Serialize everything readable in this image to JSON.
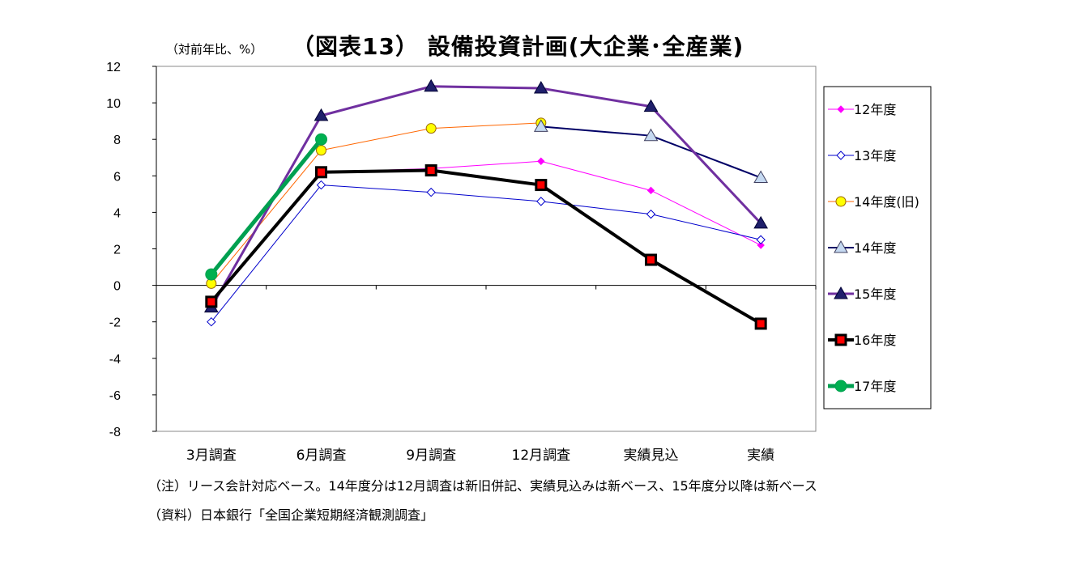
{
  "title": "（図表13） 設備投資計画(大企業･全産業)",
  "unit_label": "（対前年比、%）",
  "notes": [
    "（注）リース会計対応ベース。14年度分は12月調査は新旧併記、実績見込みは新ベース、15年度分以降は新ベース",
    "（資料）日本銀行「全国企業短期経済観測調査」"
  ],
  "chart_data": {
    "type": "line",
    "title": "（図表13） 設備投資計画(大企業･全産業)",
    "xlabel": "",
    "ylabel": "（対前年比、%）",
    "categories": [
      "3月調査",
      "6月調査",
      "9月調査",
      "12月調査",
      "実績見込",
      "実績"
    ],
    "ylim": [
      -8,
      12
    ],
    "yticks": [
      12,
      10,
      8,
      6,
      4,
      2,
      0,
      -2,
      -4,
      -6,
      -8
    ],
    "grid": false,
    "legend_position": "right",
    "series": [
      {
        "name": "12年度",
        "values": [
          -1.0,
          6.2,
          6.4,
          6.8,
          5.2,
          2.2
        ],
        "color": "#ff00ff",
        "marker": "diamond-filled",
        "line_width": 1
      },
      {
        "name": "13年度",
        "values": [
          -2.0,
          5.5,
          5.1,
          4.6,
          3.9,
          2.5
        ],
        "color": "#0000cc",
        "marker": "diamond-open",
        "line_width": 1
      },
      {
        "name": "14年度(旧)",
        "values": [
          0.1,
          7.4,
          8.6,
          8.9,
          null,
          null
        ],
        "color": "#ff6600",
        "marker": "circle-yellow",
        "line_width": 1
      },
      {
        "name": "14年度",
        "values": [
          null,
          null,
          null,
          8.7,
          8.2,
          5.9
        ],
        "color": "#000066",
        "marker": "triangle-open",
        "line_width": 2
      },
      {
        "name": "15年度",
        "values": [
          -1.2,
          9.3,
          10.9,
          10.8,
          9.8,
          3.4
        ],
        "color": "#7030a0",
        "marker": "triangle-filled",
        "line_width": 3
      },
      {
        "name": "16年度",
        "values": [
          -0.9,
          6.2,
          6.3,
          5.5,
          1.4,
          -2.1
        ],
        "color": "#000000",
        "marker": "square-red",
        "line_width": 4
      },
      {
        "name": "17年度",
        "values": [
          0.6,
          8.0,
          null,
          null,
          null,
          null
        ],
        "color": "#00a050",
        "marker": "circle-green",
        "line_width": 5
      }
    ]
  }
}
